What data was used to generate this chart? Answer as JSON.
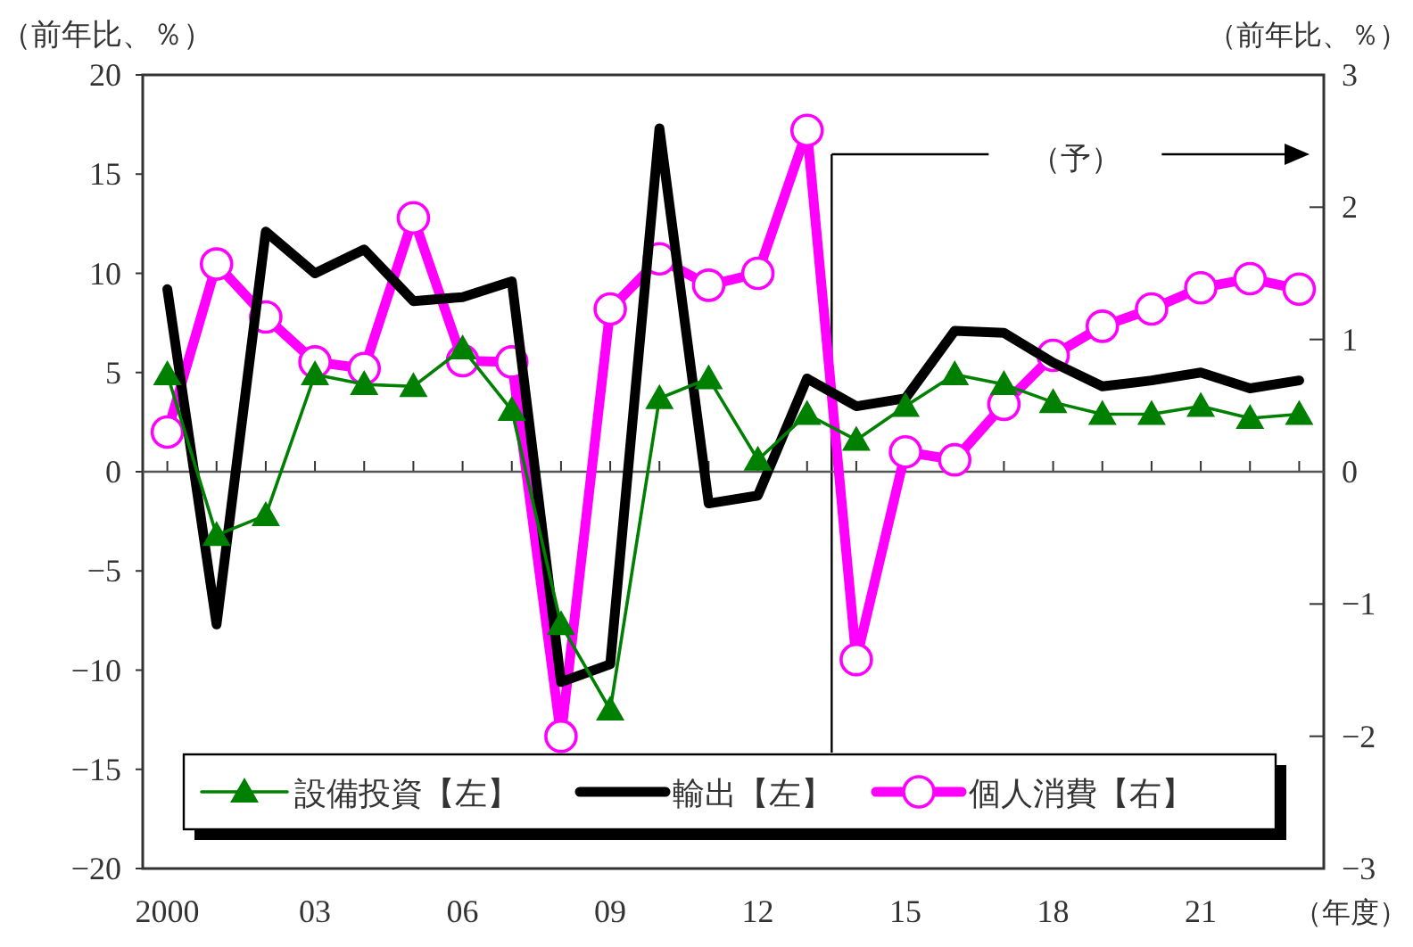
{
  "chart_data": {
    "type": "line",
    "x": [
      2000,
      2001,
      2002,
      2003,
      2004,
      2005,
      2006,
      2007,
      2008,
      2009,
      2010,
      2011,
      2012,
      2013,
      2014,
      2015,
      2016,
      2017,
      2018,
      2019,
      2020,
      2021,
      2022,
      2023
    ],
    "series": [
      {
        "name": "設備投資【左】",
        "color": "#008000",
        "marker": "triangle",
        "values": [
          4.9,
          -3.2,
          -2.2,
          4.9,
          4.4,
          4.3,
          6.2,
          3.1,
          -7.7,
          -12.0,
          3.7,
          4.7,
          0.6,
          2.9,
          1.6,
          3.3,
          4.9,
          4.4,
          3.5,
          2.9,
          2.9,
          3.3,
          2.7,
          2.9
        ]
      },
      {
        "name": "輸出【左】",
        "color": "#000000",
        "marker": "none",
        "values": [
          9.2,
          -7.7,
          12.1,
          10.0,
          11.2,
          8.6,
          8.8,
          9.6,
          -10.6,
          -9.7,
          17.3,
          -1.6,
          -1.2,
          4.7,
          3.3,
          3.7,
          7.1,
          7.0,
          5.5,
          4.3,
          4.6,
          5.0,
          4.2,
          4.6
        ]
      },
      {
        "name": "個人消費【右】",
        "color": "#ff00ff",
        "marker": "circle",
        "axis": "y2",
        "values": [
          0.3,
          1.57,
          1.17,
          0.83,
          0.78,
          1.92,
          0.84,
          0.83,
          -2.0,
          1.23,
          1.61,
          1.41,
          1.5,
          2.58,
          -1.42,
          0.15,
          0.09,
          0.51,
          0.88,
          1.1,
          1.23,
          1.39,
          1.46,
          1.38
        ]
      }
    ],
    "xlim": [
      1999.5,
      2023.5
    ],
    "xticks": [
      {
        "value": 2000,
        "label": "2000"
      },
      {
        "value": 2001,
        "label": null
      },
      {
        "value": 2002,
        "label": null
      },
      {
        "value": 2003,
        "label": "03"
      },
      {
        "value": 2004,
        "label": null
      },
      {
        "value": 2005,
        "label": null
      },
      {
        "value": 2006,
        "label": "06"
      },
      {
        "value": 2007,
        "label": null
      },
      {
        "value": 2008,
        "label": null
      },
      {
        "value": 2009,
        "label": "09"
      },
      {
        "value": 2010,
        "label": null
      },
      {
        "value": 2011,
        "label": null
      },
      {
        "value": 2012,
        "label": "12"
      },
      {
        "value": 2013,
        "label": null
      },
      {
        "value": 2014,
        "label": null
      },
      {
        "value": 2015,
        "label": "15"
      },
      {
        "value": 2016,
        "label": null
      },
      {
        "value": 2017,
        "label": null
      },
      {
        "value": 2018,
        "label": "18"
      },
      {
        "value": 2019,
        "label": null
      },
      {
        "value": 2020,
        "label": null
      },
      {
        "value": 2021,
        "label": "21"
      },
      {
        "value": 2022,
        "label": null
      },
      {
        "value": 2023,
        "label": null
      }
    ],
    "ylim": [
      -20,
      20
    ],
    "yticks": [
      -20,
      -15,
      -10,
      -5,
      0,
      5,
      10,
      15,
      20
    ],
    "y2lim": [
      -3,
      3
    ],
    "y2ticks": [
      -3,
      -2,
      -1,
      0,
      1,
      2,
      3
    ],
    "xlabel": "（年度）",
    "ylabel": "（前年比、％）",
    "y2label": "（前年比、％）",
    "ref_lines": [
      {
        "axis": "x",
        "value": 2013.5
      },
      {
        "axis": "y",
        "value": 0
      }
    ],
    "annotations": [
      "（予）"
    ],
    "legend": "bottom"
  }
}
